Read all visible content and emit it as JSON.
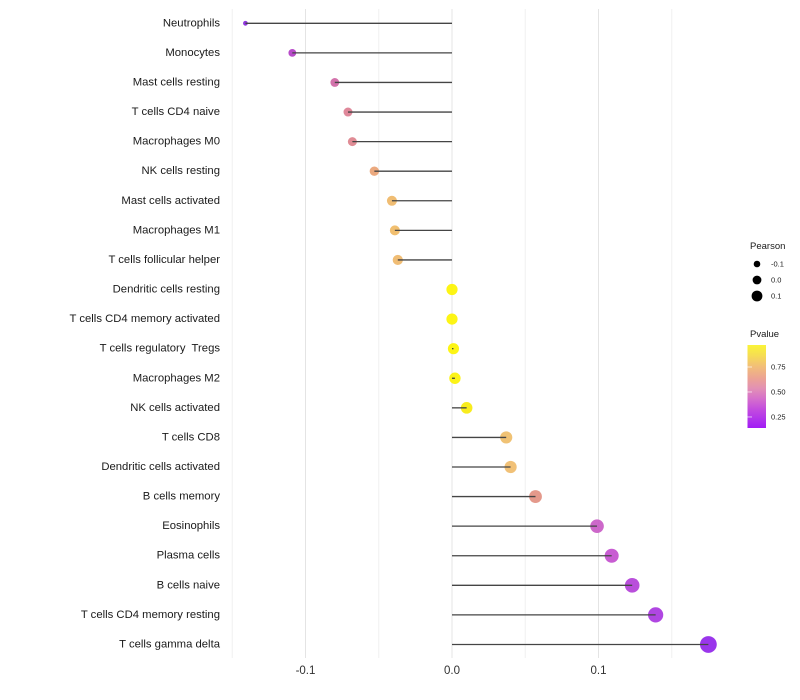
{
  "chart_data": {
    "type": "scatter",
    "variant": "horizontal-lollipop",
    "title": "",
    "xlabel": "",
    "ylabel": "",
    "xlim": [
      -0.157,
      0.192
    ],
    "baseline_x": 0,
    "grid": "vertical-only",
    "x_ticks": [
      {
        "value": -0.1,
        "label": "-0.1"
      },
      {
        "value": 0.0,
        "label": "0.0"
      },
      {
        "value": 0.1,
        "label": "0.1"
      }
    ],
    "x_minor_ticks": [
      -0.15,
      -0.05,
      0.05,
      0.15
    ],
    "points": [
      {
        "label": "Neutrophils",
        "pearson": -0.141,
        "color": "#8726DB",
        "radius": 2.4
      },
      {
        "label": "Monocytes",
        "pearson": -0.109,
        "color": "#B23CC6",
        "radius": 3.9
      },
      {
        "label": "Mast cells resting",
        "pearson": -0.08,
        "color": "#CF66A4",
        "radius": 4.4
      },
      {
        "label": "T cells CD4 naive",
        "pearson": -0.071,
        "color": "#DC7E91",
        "radius": 4.5
      },
      {
        "label": "Macrophages M0",
        "pearson": -0.068,
        "color": "#DD828C",
        "radius": 4.5
      },
      {
        "label": "NK cells resting",
        "pearson": -0.053,
        "color": "#E9A274",
        "radius": 4.7
      },
      {
        "label": "Mast cells activated",
        "pearson": -0.041,
        "color": "#EFB767",
        "radius": 5.0
      },
      {
        "label": "Macrophages M1",
        "pearson": -0.039,
        "color": "#F0BA64",
        "radius": 5.0
      },
      {
        "label": "T cells follicular helper",
        "pearson": -0.037,
        "color": "#EFB769",
        "radius": 5.1
      },
      {
        "label": "Dendritic cells resting",
        "pearson": 0.0,
        "color": "#FDF401",
        "radius": 5.6
      },
      {
        "label": "T cells CD4 memory activated",
        "pearson": 0.0,
        "color": "#FDF401",
        "radius": 5.6
      },
      {
        "label": "T cells regulatory  Tregs",
        "pearson": 0.001,
        "color": "#FDF401",
        "radius": 5.6
      },
      {
        "label": "Macrophages M2",
        "pearson": 0.002,
        "color": "#FCF204",
        "radius": 5.7
      },
      {
        "label": "NK cells activated",
        "pearson": 0.01,
        "color": "#F7EA0B",
        "radius": 5.8
      },
      {
        "label": "T cells CD8",
        "pearson": 0.037,
        "color": "#EFBD68",
        "radius": 6.1
      },
      {
        "label": "Dendritic cells activated",
        "pearson": 0.04,
        "color": "#F0BC6B",
        "radius": 6.1
      },
      {
        "label": "B cells memory",
        "pearson": 0.057,
        "color": "#E29081",
        "radius": 6.4
      },
      {
        "label": "Eosinophils",
        "pearson": 0.099,
        "color": "#C95BC5",
        "radius": 6.8
      },
      {
        "label": "Plasma cells",
        "pearson": 0.109,
        "color": "#C34ECE",
        "radius": 7.0
      },
      {
        "label": "B cells naive",
        "pearson": 0.123,
        "color": "#B340D8",
        "radius": 7.3
      },
      {
        "label": "T cells CD4 memory resting",
        "pearson": 0.139,
        "color": "#A936E0",
        "radius": 7.6
      },
      {
        "label": "T cells gamma delta",
        "pearson": 0.175,
        "color": "#9125E9",
        "radius": 8.4
      }
    ],
    "legend": {
      "position": "right",
      "pearson_size": {
        "title": "Pearson",
        "entries": [
          {
            "label": "-0.1",
            "radius": 3.3
          },
          {
            "label": "0.0",
            "radius": 4.4
          },
          {
            "label": "0.1",
            "radius": 5.4
          }
        ]
      },
      "pvalue_color": {
        "title": "Pvalue",
        "ticks": [
          {
            "label": "0.75",
            "t": 0.265
          },
          {
            "label": "0.50",
            "t": 0.566
          },
          {
            "label": "0.25",
            "t": 0.867
          }
        ],
        "gradient": [
          {
            "t": 0.0,
            "color": "#FAF438"
          },
          {
            "t": 0.12,
            "color": "#F6DE52"
          },
          {
            "t": 0.25,
            "color": "#F2C077"
          },
          {
            "t": 0.4,
            "color": "#ECA394"
          },
          {
            "t": 0.52,
            "color": "#E391B4"
          },
          {
            "t": 0.65,
            "color": "#D56FCC"
          },
          {
            "t": 0.78,
            "color": "#C24BDF"
          },
          {
            "t": 0.9,
            "color": "#B032EC"
          },
          {
            "t": 1.0,
            "color": "#A11BF5"
          }
        ]
      }
    },
    "style": {
      "stem_color": "#454545",
      "grid_major_color": "#E4E4E4",
      "grid_minor_color": "#F0F0F0",
      "category_text_color": "#1A1A1A",
      "tick_text_color": "#303030",
      "legend_text_color": "#1A1A1A",
      "background": "#FFFFFF"
    }
  }
}
